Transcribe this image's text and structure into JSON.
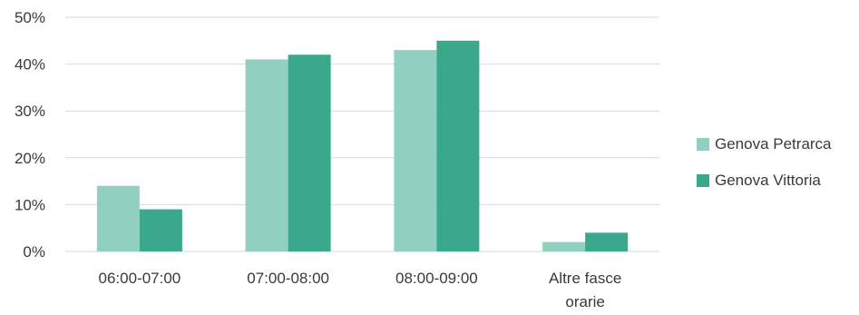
{
  "chart_data": {
    "type": "bar",
    "title": "",
    "xlabel": "",
    "ylabel": "",
    "categories": [
      "06:00-07:00",
      "07:00-08:00",
      "08:00-09:00",
      "Altre fasce orarie"
    ],
    "series": [
      {
        "name": "Genova Petrarca",
        "values": [
          14,
          41,
          43,
          2
        ],
        "color": "#91d0c0"
      },
      {
        "name": "Genova Vittoria",
        "values": [
          9,
          42,
          45,
          4
        ],
        "color": "#3aa98b"
      }
    ],
    "ylim": [
      0,
      50
    ],
    "yticks": [
      "0%",
      "10%",
      "20%",
      "30%",
      "40%",
      "50%"
    ],
    "grid": true,
    "legend_position": "right"
  }
}
